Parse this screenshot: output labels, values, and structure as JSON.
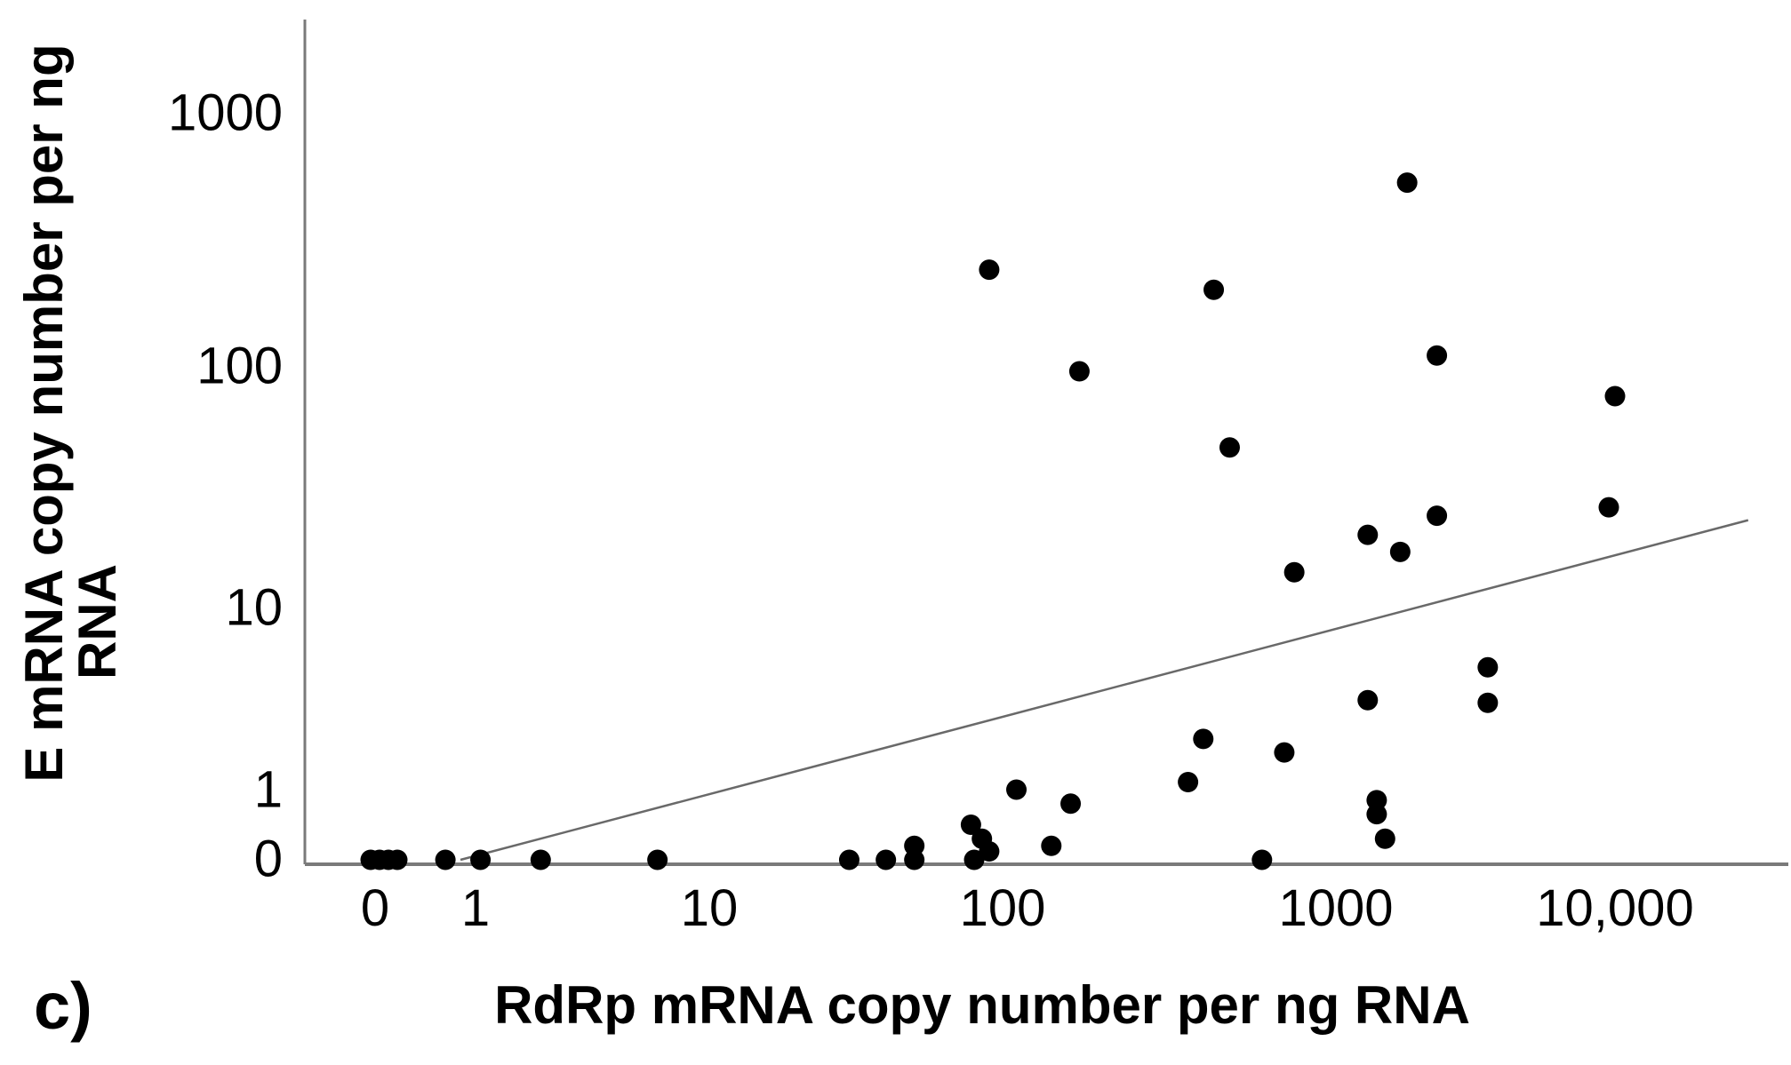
{
  "panel_label": "c)",
  "chart_data": {
    "type": "scatter",
    "title": "",
    "xlabel": "RdRp mRNA copy number per ng RNA",
    "ylabel": "E mRNA copy number per ng RNA",
    "ylabel_line1": "E mRNA copy number per ng",
    "ylabel_line2": "RNA",
    "x_scale": "log, with a 0 position left of 1",
    "y_scale": "log, with a 0 position below 1",
    "xlim": [
      0,
      30000
    ],
    "ylim": [
      0,
      2000
    ],
    "grid": false,
    "legend": "none",
    "x_tick_labels": [
      "0",
      "1",
      "10",
      "100",
      "1000",
      "10,000"
    ],
    "x_tick_values": [
      0,
      1,
      10,
      100,
      1000,
      10000
    ],
    "y_tick_labels": [
      "0",
      "1",
      "10",
      "100",
      "1000"
    ],
    "y_tick_values": [
      0,
      1,
      10,
      100,
      1000
    ],
    "points": [
      [
        0,
        0,
        -5
      ],
      [
        0,
        0,
        5
      ],
      [
        0,
        0,
        15
      ],
      [
        0,
        0,
        25
      ],
      [
        0.7,
        0
      ],
      [
        1.05,
        0
      ],
      [
        1.9,
        0
      ],
      [
        6,
        0
      ],
      [
        30,
        0
      ],
      [
        40,
        0
      ],
      [
        50,
        0.2
      ],
      [
        50,
        0
      ],
      [
        80,
        0
      ],
      [
        85,
        0.3
      ],
      [
        90,
        0.12
      ],
      [
        78,
        0.5
      ],
      [
        110,
        1
      ],
      [
        160,
        0.8
      ],
      [
        140,
        0.2
      ],
      [
        360,
        1.1
      ],
      [
        600,
        0
      ],
      [
        1400,
        0.85
      ],
      [
        1400,
        0.65
      ],
      [
        1500,
        0.3
      ],
      [
        90,
        240
      ],
      [
        430,
        200
      ],
      [
        170,
        95
      ],
      [
        480,
        46
      ],
      [
        750,
        14
      ],
      [
        1300,
        20
      ],
      [
        1700,
        17
      ],
      [
        2300,
        24
      ],
      [
        1800,
        530
      ],
      [
        2300,
        110
      ],
      [
        10000,
        75
      ],
      [
        9500,
        26
      ],
      [
        3500,
        4.7
      ],
      [
        3500,
        3
      ],
      [
        1300,
        3.1
      ],
      [
        400,
        1.9
      ],
      [
        700,
        1.6
      ]
    ],
    "trendline": {
      "x1": 0.85,
      "y1": 0,
      "x2": 30000,
      "y2": 23
    },
    "colors": {
      "points": "#000000",
      "axes": "#7a7a7a",
      "trendline": "#696969",
      "text": "#000000",
      "background": "#ffffff"
    }
  }
}
